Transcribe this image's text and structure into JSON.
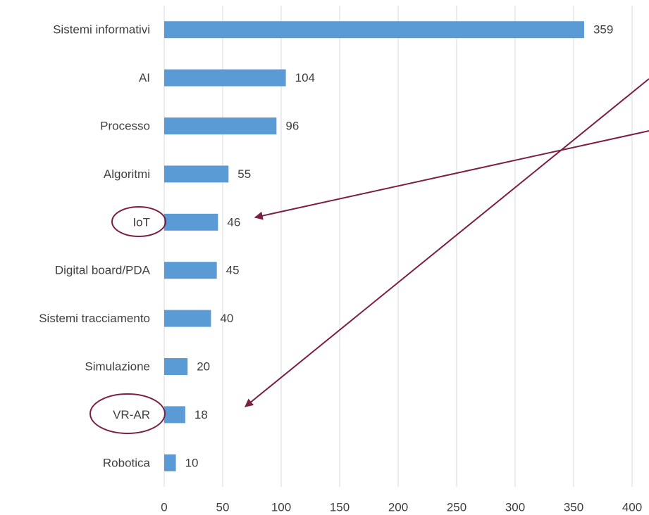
{
  "chart_data": {
    "type": "bar",
    "orientation": "horizontal",
    "categories": [
      "Sistemi informativi",
      "AI",
      "Processo",
      "Algoritmi",
      "IoT",
      "Digital board/PDA",
      "Sistemi tracciamento",
      "Simulazione",
      "VR-AR",
      "Robotica"
    ],
    "values": [
      359,
      104,
      96,
      55,
      46,
      45,
      40,
      20,
      18,
      10
    ],
    "color": "#5b9bd5",
    "xlim": [
      0,
      400
    ],
    "xticks": [
      0,
      50,
      100,
      150,
      200,
      250,
      300,
      350,
      400
    ],
    "grid": true
  }
}
